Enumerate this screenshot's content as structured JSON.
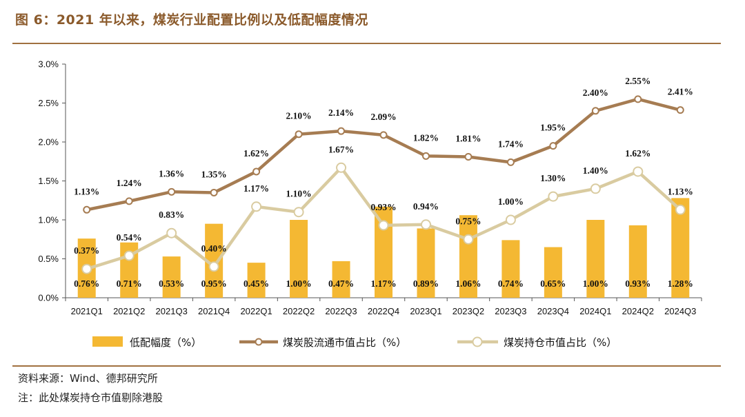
{
  "header": {
    "title": "图 6：2021 年以来，煤炭行业配置比例以及低配幅度情况"
  },
  "footer": {
    "source": "资料来源：Wind、德邦研究所",
    "note": "注：此处煤炭持仓市值剔除港股"
  },
  "colors": {
    "bar": "#F4B833",
    "line1": "#A67C52",
    "line2": "#D9CBA0",
    "accent": "#A0703F"
  },
  "chart_data": {
    "type": "bar+line",
    "title": "2021 年以来，煤炭行业配置比例以及低配幅度情况",
    "categories": [
      "2021Q1",
      "2021Q2",
      "2021Q3",
      "2021Q4",
      "2022Q1",
      "2022Q2",
      "2022Q3",
      "2022Q4",
      "2023Q1",
      "2023Q2",
      "2023Q3",
      "2023Q4",
      "2024Q1",
      "2024Q2",
      "2024Q3"
    ],
    "ylim": [
      0,
      3.0
    ],
    "yticks": [
      "0.0%",
      "0.5%",
      "1.0%",
      "1.5%",
      "2.0%",
      "2.5%",
      "3.0%"
    ],
    "ytick_values": [
      0,
      0.5,
      1.0,
      1.5,
      2.0,
      2.5,
      3.0
    ],
    "series": [
      {
        "name": "低配幅度（%）",
        "type": "bar",
        "values": [
          0.76,
          0.71,
          0.53,
          0.95,
          0.45,
          1.0,
          0.47,
          1.17,
          0.89,
          1.06,
          0.74,
          0.65,
          1.0,
          0.93,
          1.28
        ],
        "labels": [
          "0.76%",
          "0.71%",
          "0.53%",
          "0.95%",
          "0.45%",
          "1.00%",
          "0.47%",
          "1.17%",
          "0.89%",
          "1.06%",
          "0.74%",
          "0.65%",
          "1.00%",
          "0.93%",
          "1.28%"
        ]
      },
      {
        "name": "煤炭股流通市值占比（%）",
        "type": "line",
        "values": [
          1.13,
          1.24,
          1.36,
          1.35,
          1.62,
          2.1,
          2.14,
          2.09,
          1.82,
          1.81,
          1.74,
          1.95,
          2.4,
          2.55,
          2.41
        ],
        "labels": [
          "1.13%",
          "1.24%",
          "1.36%",
          "1.35%",
          "1.62%",
          "2.10%",
          "2.14%",
          "2.09%",
          "1.82%",
          "1.81%",
          "1.74%",
          "1.95%",
          "2.40%",
          "2.55%",
          "2.41%"
        ]
      },
      {
        "name": "煤炭持仓市值占比（%）",
        "type": "line",
        "values": [
          0.37,
          0.54,
          0.83,
          0.4,
          1.17,
          1.1,
          1.67,
          0.93,
          0.94,
          0.75,
          1.0,
          1.3,
          1.4,
          1.62,
          1.13
        ],
        "labels": [
          "0.37%",
          "0.54%",
          "0.83%",
          "0.40%",
          "1.17%",
          "1.10%",
          "1.67%",
          "0.93%",
          "0.94%",
          "0.75%",
          "1.00%",
          "1.30%",
          "1.40%",
          "1.62%",
          "1.13%"
        ]
      }
    ],
    "legend": [
      "低配幅度（%）",
      "煤炭股流通市值占比（%）",
      "煤炭持仓市值占比（%）"
    ],
    "legend_position": "bottom"
  }
}
